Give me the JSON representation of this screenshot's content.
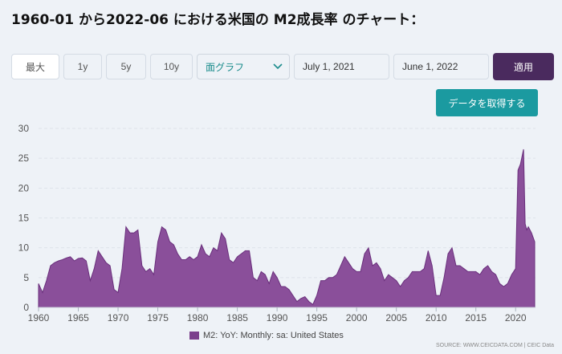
{
  "page": {
    "title": "1960-01 から2022-06 における米国の M2成長率 のチャート：",
    "range_buttons": [
      "最大",
      "1y",
      "5y",
      "10y"
    ],
    "chart_type_select": "面グラフ",
    "start_date": "July 1, 2021",
    "end_date": "June 1, 2022",
    "apply_label": "適用",
    "get_data_label": "データを取得する",
    "source": "SOURCE: WWW.CEICDATA.COM | CEIC Data"
  },
  "colors": {
    "area_fill": "#8a4f9a",
    "area_stroke": "#6a2f7c",
    "apply_bg": "#4a2a5e",
    "get_data_bg": "#1b9aa0"
  },
  "icons": {
    "select_chevron": "chevron-down-icon"
  },
  "chart_data": {
    "type": "area",
    "legend_position": "bottom",
    "grid": true,
    "ylim": [
      0,
      30
    ],
    "yticks": [
      0,
      5,
      10,
      15,
      20,
      25,
      30
    ],
    "xlim": [
      1960,
      2022.5
    ],
    "xticks": [
      1960,
      1965,
      1970,
      1975,
      1980,
      1985,
      1990,
      1995,
      2000,
      2005,
      2010,
      2015,
      2020
    ],
    "series": [
      {
        "name": "M2: YoY: Monthly: sa: United States",
        "x": [
          1960.0,
          1960.5,
          1961.0,
          1961.5,
          1962.0,
          1962.5,
          1963.0,
          1963.5,
          1964.0,
          1964.5,
          1965.0,
          1965.5,
          1966.0,
          1966.5,
          1967.0,
          1967.5,
          1968.0,
          1968.5,
          1969.0,
          1969.5,
          1970.0,
          1970.5,
          1971.0,
          1971.5,
          1972.0,
          1972.5,
          1973.0,
          1973.5,
          1974.0,
          1974.5,
          1975.0,
          1975.5,
          1976.0,
          1976.5,
          1977.0,
          1977.5,
          1978.0,
          1978.5,
          1979.0,
          1979.5,
          1980.0,
          1980.5,
          1981.0,
          1981.5,
          1982.0,
          1982.5,
          1983.0,
          1983.5,
          1984.0,
          1984.5,
          1985.0,
          1985.5,
          1986.0,
          1986.5,
          1987.0,
          1987.5,
          1988.0,
          1988.5,
          1989.0,
          1989.5,
          1990.0,
          1990.5,
          1991.0,
          1991.5,
          1992.0,
          1992.5,
          1993.0,
          1993.5,
          1994.0,
          1994.5,
          1995.0,
          1995.5,
          1996.0,
          1996.5,
          1997.0,
          1997.5,
          1998.0,
          1998.5,
          1999.0,
          1999.5,
          2000.0,
          2000.5,
          2001.0,
          2001.5,
          2002.0,
          2002.5,
          2003.0,
          2003.5,
          2004.0,
          2004.5,
          2005.0,
          2005.5,
          2006.0,
          2006.5,
          2007.0,
          2007.5,
          2008.0,
          2008.5,
          2009.0,
          2009.5,
          2010.0,
          2010.5,
          2011.0,
          2011.5,
          2012.0,
          2012.5,
          2013.0,
          2013.5,
          2014.0,
          2014.5,
          2015.0,
          2015.5,
          2016.0,
          2016.5,
          2017.0,
          2017.5,
          2018.0,
          2018.5,
          2019.0,
          2019.5,
          2020.0,
          2020.3,
          2020.6,
          2021.0,
          2021.2,
          2021.4,
          2021.6,
          2022.0,
          2022.4
        ],
        "y": [
          4.0,
          2.5,
          4.5,
          7.0,
          7.5,
          7.8,
          8.0,
          8.3,
          8.5,
          7.8,
          8.2,
          8.3,
          7.8,
          4.5,
          6.5,
          9.5,
          8.5,
          7.5,
          7.0,
          3.0,
          2.5,
          6.5,
          13.5,
          12.5,
          12.5,
          13.0,
          7.0,
          6.0,
          6.5,
          5.5,
          11.0,
          13.5,
          13.0,
          11.0,
          10.5,
          9.0,
          8.0,
          8.0,
          8.5,
          8.0,
          8.5,
          10.5,
          9.0,
          8.5,
          10.0,
          9.5,
          12.5,
          11.5,
          8.0,
          7.5,
          8.5,
          9.0,
          9.5,
          9.5,
          5.0,
          4.5,
          6.0,
          5.5,
          4.0,
          6.0,
          5.0,
          3.5,
          3.5,
          3.0,
          2.0,
          1.0,
          1.5,
          1.8,
          1.0,
          0.5,
          2.0,
          4.5,
          4.5,
          5.0,
          5.0,
          5.5,
          7.0,
          8.5,
          7.5,
          6.5,
          6.0,
          6.0,
          9.0,
          10.0,
          7.0,
          7.5,
          6.5,
          4.5,
          5.5,
          5.0,
          4.5,
          3.5,
          4.5,
          5.0,
          6.0,
          6.0,
          6.0,
          6.5,
          9.5,
          7.0,
          2.0,
          2.0,
          5.0,
          9.0,
          10.0,
          7.0,
          7.0,
          6.5,
          6.0,
          6.0,
          6.0,
          5.5,
          6.5,
          7.0,
          6.0,
          5.5,
          4.0,
          3.5,
          4.0,
          5.5,
          6.5,
          23.0,
          24.0,
          26.5,
          14.0,
          13.0,
          13.5,
          12.5,
          11.0
        ]
      }
    ]
  }
}
